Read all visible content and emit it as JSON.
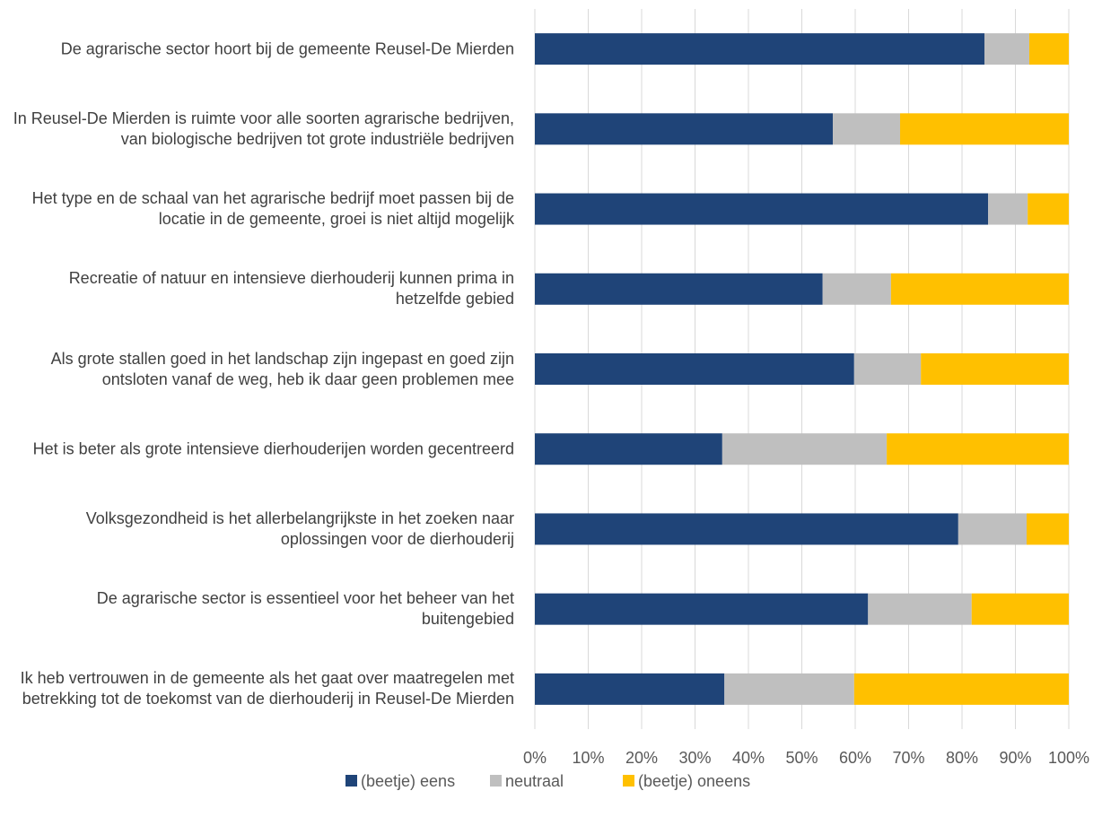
{
  "chart_data": {
    "type": "stacked_barh",
    "categories": [
      "De agrarische sector hoort bij de gemeente Reusel-De Mierden",
      "In Reusel-De Mierden is ruimte voor alle soorten agrarische bedrijven, van biologische bedrijven tot grote industriële bedrijven",
      "Het type en de schaal van het agrarische bedrijf moet passen bij de locatie in de gemeente, groei is niet altijd mogelijk",
      "Recreatie of natuur en intensieve dierhouderij kunnen prima in hetzelfde gebied",
      "Als grote stallen goed in het landschap zijn ingepast en goed zijn ontsloten vanaf de weg, heb ik daar geen problemen mee",
      "Het is beter als grote intensieve dierhouderijen worden gecentreerd",
      "Volksgezondheid is het allerbelangrijkste in het zoeken naar oplossingen voor de dierhouderij",
      "De agrarische sector is essentieel voor het beheer van het buitengebied",
      "Ik heb vertrouwen in de gemeente als het gaat over maatregelen met betrekking tot de toekomst van de dierhouderij in Reusel-De Mierden"
    ],
    "series": [
      {
        "name": "(beetje) eens",
        "color": "#1f4478",
        "values": [
          84.2,
          55.8,
          84.9,
          53.9,
          59.8,
          35.1,
          79.3,
          62.4,
          35.5
        ]
      },
      {
        "name": "neutraal",
        "color": "#bfbfbf",
        "values": [
          8.4,
          12.6,
          7.4,
          12.8,
          12.5,
          30.8,
          12.8,
          19.4,
          24.3
        ]
      },
      {
        "name": "(beetje) oneens",
        "color": "#ffc000",
        "values": [
          7.4,
          31.6,
          7.7,
          33.3,
          27.7,
          34.1,
          7.9,
          18.2,
          40.2
        ]
      }
    ],
    "xlim": [
      0,
      100
    ],
    "xticks": [
      {
        "value": 0,
        "label": "0%"
      },
      {
        "value": 10,
        "label": "10%"
      },
      {
        "value": 20,
        "label": "20%"
      },
      {
        "value": 30,
        "label": "30%"
      },
      {
        "value": 40,
        "label": "40%"
      },
      {
        "value": 50,
        "label": "50%"
      },
      {
        "value": 60,
        "label": "60%"
      },
      {
        "value": 70,
        "label": "70%"
      },
      {
        "value": 80,
        "label": "80%"
      },
      {
        "value": 90,
        "label": "90%"
      },
      {
        "value": 100,
        "label": "100%"
      }
    ],
    "grid": true,
    "legend": "bottom"
  }
}
